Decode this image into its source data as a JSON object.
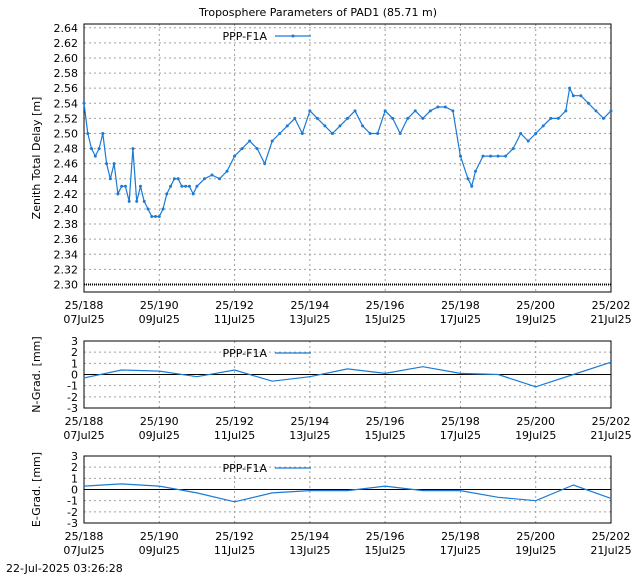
{
  "title": "Troposphere Parameters of PAD1 (85.71 m)",
  "timestamp": "22-Jul-2025 03:26:28",
  "colors": {
    "series": "#1a7ad6",
    "grid": "#a0a0a0",
    "axis": "#000000"
  },
  "chart_data": [
    {
      "type": "line",
      "name": "ztd",
      "ylabel": "Zenith Total Delay [m]",
      "legend": "PPP-F1A",
      "legend_position": "top-left",
      "grid": true,
      "xlim": [
        188,
        202
      ],
      "ylim": [
        2.29,
        2.645
      ],
      "y_ticks": [
        "2.30",
        "2.32",
        "2.34",
        "2.36",
        "2.38",
        "2.40",
        "2.42",
        "2.44",
        "2.46",
        "2.48",
        "2.50",
        "2.52",
        "2.54",
        "2.56",
        "2.58",
        "2.60",
        "2.62",
        "2.64"
      ],
      "x_ticks": [
        {
          "top": "25/188",
          "bottom": "07Jul25"
        },
        {
          "top": "25/190",
          "bottom": "09Jul25"
        },
        {
          "top": "25/192",
          "bottom": "11Jul25"
        },
        {
          "top": "25/194",
          "bottom": "13Jul25"
        },
        {
          "top": "25/196",
          "bottom": "15Jul25"
        },
        {
          "top": "25/198",
          "bottom": "17Jul25"
        },
        {
          "top": "25/200",
          "bottom": "19Jul25"
        },
        {
          "top": "25/202",
          "bottom": "21Jul25"
        }
      ],
      "baseline": 2.3,
      "x": [
        188.0,
        188.1,
        188.2,
        188.3,
        188.4,
        188.5,
        188.6,
        188.7,
        188.8,
        188.9,
        189.0,
        189.1,
        189.2,
        189.3,
        189.4,
        189.5,
        189.6,
        189.7,
        189.8,
        189.9,
        190.0,
        190.1,
        190.2,
        190.3,
        190.4,
        190.5,
        190.6,
        190.7,
        190.8,
        190.9,
        191.0,
        191.2,
        191.4,
        191.6,
        191.8,
        192.0,
        192.2,
        192.4,
        192.6,
        192.8,
        193.0,
        193.2,
        193.4,
        193.6,
        193.8,
        194.0,
        194.2,
        194.4,
        194.6,
        194.8,
        195.0,
        195.2,
        195.4,
        195.6,
        195.8,
        196.0,
        196.2,
        196.4,
        196.6,
        196.8,
        197.0,
        197.2,
        197.4,
        197.6,
        197.8,
        198.0,
        198.2,
        198.3,
        198.4,
        198.6,
        198.8,
        199.0,
        199.2,
        199.4,
        199.6,
        199.8,
        200.0,
        200.2,
        200.4,
        200.6,
        200.8,
        200.9,
        201.0,
        201.2,
        201.4,
        201.6,
        201.8,
        202.0
      ],
      "values": [
        2.54,
        2.5,
        2.48,
        2.47,
        2.48,
        2.5,
        2.46,
        2.44,
        2.46,
        2.42,
        2.43,
        2.43,
        2.41,
        2.48,
        2.41,
        2.43,
        2.41,
        2.4,
        2.39,
        2.39,
        2.39,
        2.4,
        2.42,
        2.43,
        2.44,
        2.44,
        2.43,
        2.43,
        2.43,
        2.42,
        2.43,
        2.44,
        2.445,
        2.44,
        2.45,
        2.47,
        2.48,
        2.49,
        2.48,
        2.46,
        2.49,
        2.5,
        2.51,
        2.52,
        2.5,
        2.53,
        2.52,
        2.51,
        2.5,
        2.51,
        2.52,
        2.53,
        2.51,
        2.5,
        2.5,
        2.53,
        2.52,
        2.5,
        2.52,
        2.53,
        2.52,
        2.53,
        2.535,
        2.535,
        2.53,
        2.47,
        2.44,
        2.43,
        2.45,
        2.47,
        2.47,
        2.47,
        2.47,
        2.48,
        2.5,
        2.49,
        2.5,
        2.51,
        2.52,
        2.52,
        2.53,
        2.56,
        2.55,
        2.55,
        2.54,
        2.53,
        2.52,
        2.53
      ]
    },
    {
      "type": "line",
      "name": "ngrad",
      "ylabel": "N-Grad. [mm]",
      "legend": "PPP-F1A",
      "legend_position": "top-left",
      "grid": true,
      "xlim": [
        188,
        202
      ],
      "ylim": [
        -3,
        3
      ],
      "y_ticks": [
        "3",
        "2",
        "1",
        "0",
        "-1",
        "-2",
        "-3"
      ],
      "x_ticks": [
        {
          "top": "25/188",
          "bottom": "07Jul25"
        },
        {
          "top": "25/190",
          "bottom": "09Jul25"
        },
        {
          "top": "25/192",
          "bottom": "11Jul25"
        },
        {
          "top": "25/194",
          "bottom": "13Jul25"
        },
        {
          "top": "25/196",
          "bottom": "15Jul25"
        },
        {
          "top": "25/198",
          "bottom": "17Jul25"
        },
        {
          "top": "25/200",
          "bottom": "19Jul25"
        },
        {
          "top": "25/202",
          "bottom": "21Jul25"
        }
      ],
      "x": [
        188,
        189,
        190,
        191,
        192,
        193,
        194,
        195,
        196,
        197,
        198,
        199,
        200,
        201,
        202
      ],
      "values": [
        -0.3,
        0.4,
        0.3,
        -0.2,
        0.4,
        -0.6,
        -0.2,
        0.5,
        0.1,
        0.7,
        0.1,
        0.0,
        -1.1,
        0.0,
        1.1
      ]
    },
    {
      "type": "line",
      "name": "egrad",
      "ylabel": "E-Grad. [mm]",
      "legend": "PPP-F1A",
      "legend_position": "top-left",
      "grid": true,
      "xlim": [
        188,
        202
      ],
      "ylim": [
        -3,
        3
      ],
      "y_ticks": [
        "3",
        "2",
        "1",
        "0",
        "-1",
        "-2",
        "-3"
      ],
      "x_ticks": [
        {
          "top": "25/188",
          "bottom": "07Jul25"
        },
        {
          "top": "25/190",
          "bottom": "09Jul25"
        },
        {
          "top": "25/192",
          "bottom": "11Jul25"
        },
        {
          "top": "25/194",
          "bottom": "13Jul25"
        },
        {
          "top": "25/196",
          "bottom": "15Jul25"
        },
        {
          "top": "25/198",
          "bottom": "17Jul25"
        },
        {
          "top": "25/200",
          "bottom": "19Jul25"
        },
        {
          "top": "25/202",
          "bottom": "21Jul25"
        }
      ],
      "x": [
        188,
        189,
        190,
        191,
        192,
        193,
        194,
        195,
        196,
        197,
        198,
        199,
        200,
        201,
        202
      ],
      "values": [
        0.3,
        0.5,
        0.3,
        -0.3,
        -1.1,
        -0.3,
        -0.1,
        -0.1,
        0.3,
        -0.1,
        -0.1,
        -0.7,
        -1.0,
        0.4,
        -0.8
      ]
    }
  ]
}
